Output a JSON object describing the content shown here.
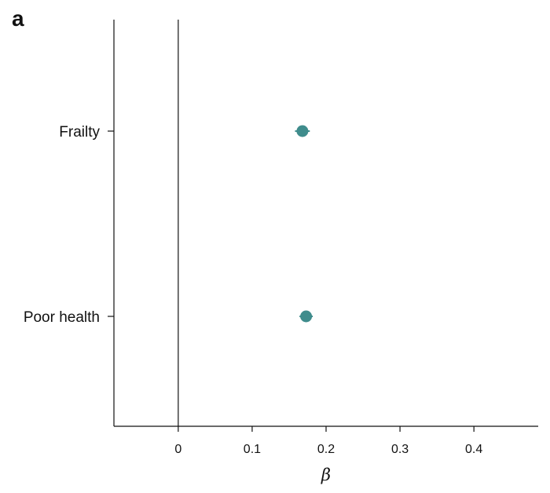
{
  "panel_label": "a",
  "chart_data": {
    "type": "scatter",
    "subtype": "forest-plot",
    "xlabel": "β",
    "ylabel": "",
    "xlim": [
      -0.087,
      0.487
    ],
    "xticks": [
      0,
      0.1,
      0.2,
      0.3,
      0.4
    ],
    "xtick_labels": [
      "0",
      "0.1",
      "0.2",
      "0.3",
      "0.4"
    ],
    "reference_line_x": 0,
    "grid": false,
    "legend": "none",
    "marker_color": "#3f8c8c",
    "categories": [
      "Frailty",
      "Poor health"
    ],
    "estimates": [
      0.168,
      0.173
    ],
    "ci_lower": [
      0.158,
      0.164
    ],
    "ci_upper": [
      0.178,
      0.182
    ]
  }
}
